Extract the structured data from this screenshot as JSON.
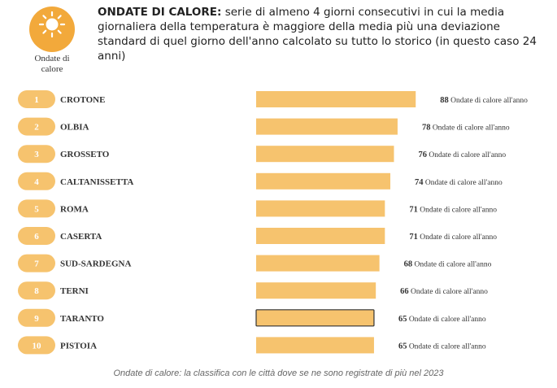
{
  "logo": {
    "icon": "sun-icon",
    "label_line1": "Ondate di",
    "label_line2": "calore",
    "color": "#f2a93b"
  },
  "headline": {
    "bold": "ONDATE DI CALORE:",
    "text": "serie di almeno 4 giorni consecutivi in cui la media giornaliera della temperatura è maggiore della media più una deviazione standard di quel giorno dell'anno calcolato su tutto lo storico (in questo caso 24 anni)"
  },
  "chart_data": {
    "type": "bar",
    "orientation": "horizontal",
    "ranks": [
      "1",
      "2",
      "3",
      "4",
      "5",
      "6",
      "7",
      "8",
      "9",
      "10"
    ],
    "categories": [
      "CROTONE",
      "OLBIA",
      "GROSSETO",
      "CALTANISSETTA",
      "ROMA",
      "CASERTA",
      "SUD-SARDEGNA",
      "TERNI",
      "TARANTO",
      "PISTOIA"
    ],
    "values": [
      88,
      78,
      76,
      74,
      71,
      71,
      68,
      66,
      65,
      65
    ],
    "value_suffix": "Ondate di calore all'anno",
    "highlighted_category": "TARANTO",
    "bar_color": "#f6c36e",
    "rank_pill_color": "#f6c36e",
    "highlight_border_color": "#333333"
  },
  "caption": "Ondate di calore: la classifica con le città dove se ne sono registrate di più nel 2023"
}
